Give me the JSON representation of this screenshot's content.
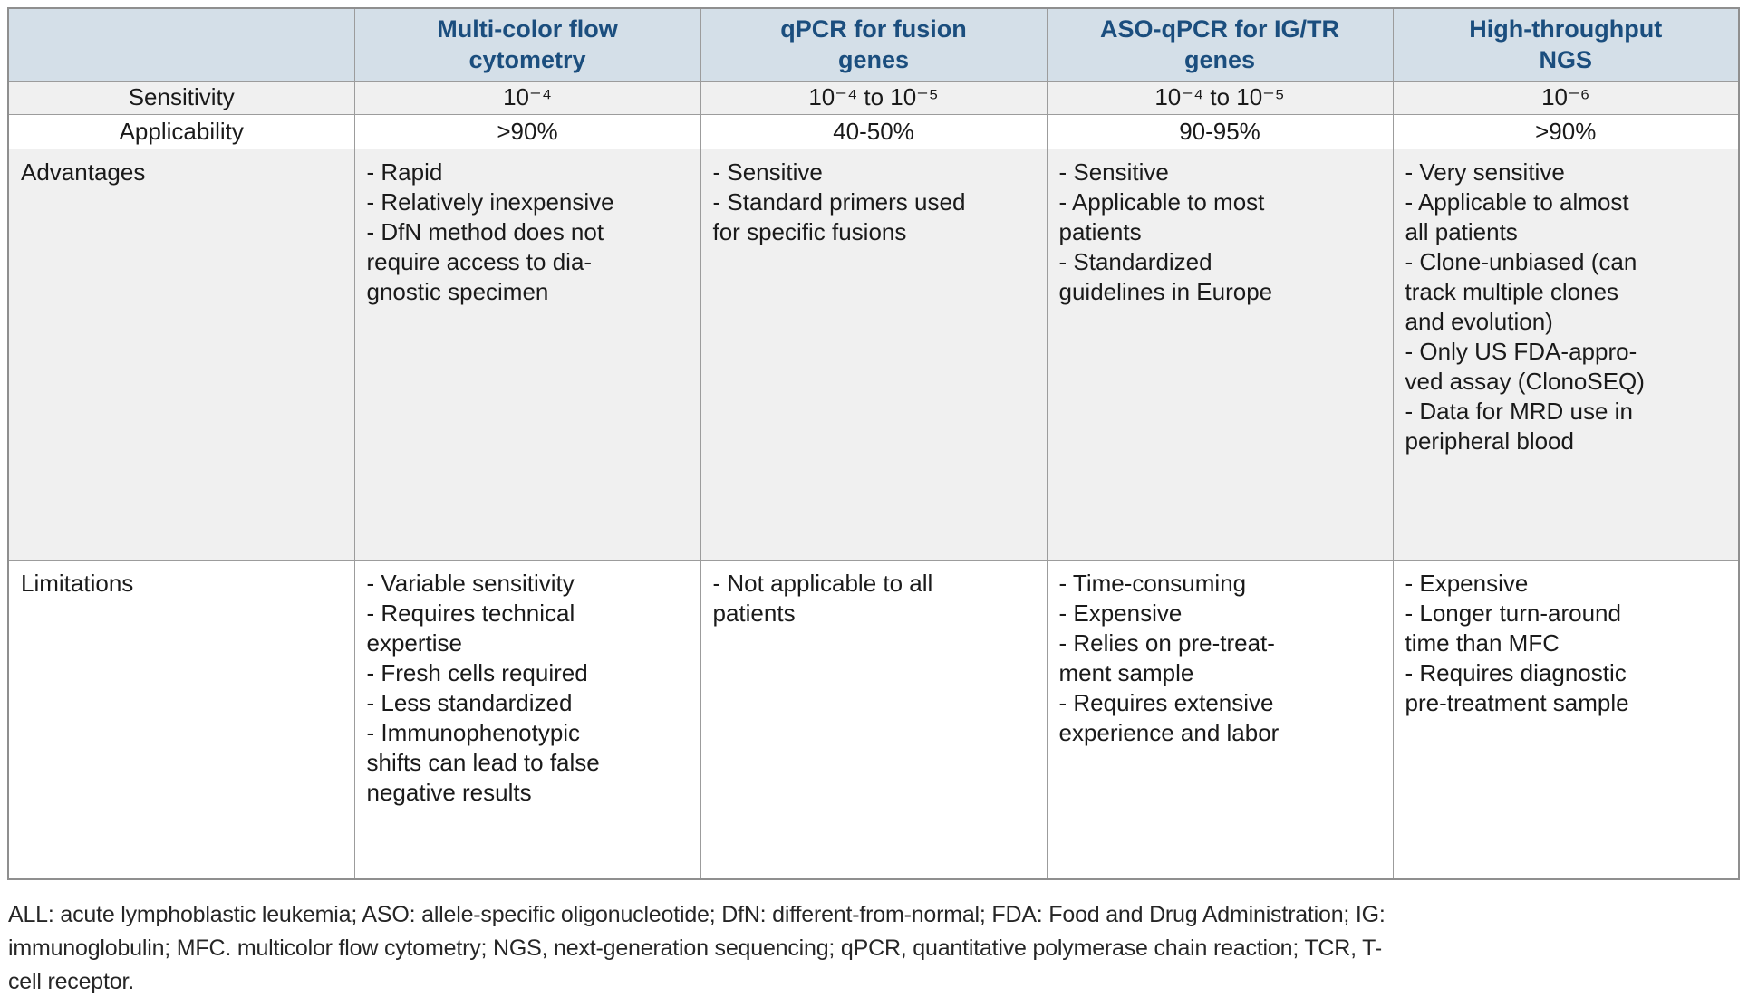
{
  "colors": {
    "header_bg": "#d4dfe8",
    "header_text": "#1b4e7e",
    "stripe_bg": "#f0f0f0",
    "border": "#9c9c9c",
    "body_text": "#1a1a1a"
  },
  "table": {
    "header": {
      "corner": "",
      "columns": [
        "Multi-color flow\ncytometry",
        "qPCR for fusion\ngenes",
        "ASO-qPCR for IG/TR\ngenes",
        "High-throughput\nNGS"
      ]
    },
    "rows": {
      "sensitivity": {
        "label": "Sensitivity",
        "values": [
          "10⁻⁴",
          "10⁻⁴ to 10⁻⁵",
          "10⁻⁴ to 10⁻⁵",
          "10⁻⁶"
        ]
      },
      "applicability": {
        "label": "Applicability",
        "values": [
          ">90%",
          "40-50%",
          "90-95%",
          ">90%"
        ]
      },
      "advantages": {
        "label": "Advantages",
        "values": [
          [
            "- Rapid",
            "- Relatively inexpensive",
            "- DfN method does not\nrequire access to dia-\ngnostic specimen"
          ],
          [
            "- Sensitive",
            "- Standard primers used\nfor specific fusions"
          ],
          [
            "- Sensitive",
            "- Applicable to most\npatients",
            "- Standardized\nguidelines in Europe"
          ],
          [
            "- Very sensitive",
            "- Applicable to almost\nall patients",
            "- Clone-unbiased (can\ntrack multiple clones\nand evolution)",
            "- Only US FDA-appro-\nved assay (ClonoSEQ)",
            "- Data for MRD use in\nperipheral blood"
          ]
        ]
      },
      "limitations": {
        "label": "Limitations",
        "values": [
          [
            "- Variable sensitivity",
            "- Requires technical\nexpertise",
            "- Fresh cells required",
            "- Less standardized",
            "- Immunophenotypic\nshifts can lead to false\nnegative results"
          ],
          [
            "- Not applicable to all\npatients"
          ],
          [
            "- Time-consuming",
            "- Expensive",
            "- Relies on pre-treat-\nment sample",
            "- Requires extensive\nexperience and labor"
          ],
          [
            "- Expensive",
            "- Longer turn-around\ntime than MFC",
            "- Requires diagnostic\npre-treatment sample"
          ]
        ]
      }
    }
  },
  "footnote": "ALL: acute lymphoblastic leukemia; ASO: allele-specific oligonucleotide; DfN: different-from-normal; FDA: Food and Drug Administration; IG:\nimmunoglobulin; MFC. multicolor flow cytometry; NGS, next-generation sequencing; qPCR, quantitative polymerase chain reaction; TCR, T-\ncell receptor."
}
